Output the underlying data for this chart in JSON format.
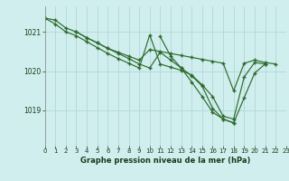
{
  "title": "Graphe pression niveau de la mer (hPa)",
  "bg_color": "#d0eeee",
  "grid_color": "#b0d8d8",
  "line_color": "#2d6a2d",
  "xlim": [
    0,
    23
  ],
  "ylim": [
    1018.1,
    1021.65
  ],
  "yticks": [
    1019,
    1020,
    1021
  ],
  "xticks": [
    0,
    1,
    2,
    3,
    4,
    5,
    6,
    7,
    8,
    9,
    10,
    11,
    12,
    13,
    14,
    15,
    16,
    17,
    18,
    19,
    20,
    21,
    22,
    23
  ],
  "series": [
    {
      "x": [
        0,
        1,
        2,
        3,
        4,
        5,
        6,
        7,
        8,
        9,
        10,
        11,
        12,
        13,
        14,
        15,
        16,
        17,
        18,
        19,
        20,
        21,
        22
      ],
      "y": [
        1021.35,
        1021.3,
        1021.1,
        1021.0,
        1020.85,
        1020.72,
        1020.58,
        1020.48,
        1020.38,
        1020.28,
        1020.55,
        1020.5,
        1020.45,
        1020.4,
        1020.35,
        1020.3,
        1020.25,
        1020.2,
        1019.5,
        1020.2,
        1020.28,
        1020.22,
        1020.18
      ]
    },
    {
      "x": [
        0,
        1,
        2,
        3,
        4,
        5,
        6,
        7,
        8,
        9,
        10,
        11,
        12,
        13,
        14,
        15,
        16,
        17,
        18,
        19,
        20,
        21
      ],
      "y": [
        1021.35,
        1021.2,
        1021.0,
        1020.9,
        1020.75,
        1020.6,
        1020.45,
        1020.32,
        1020.2,
        1020.08,
        1020.92,
        1020.18,
        1020.1,
        1020.02,
        1019.9,
        1019.65,
        1019.35,
        1018.85,
        1018.78,
        1019.85,
        1020.22,
        1020.18
      ]
    },
    {
      "x": [
        3,
        4,
        5,
        6,
        7,
        8,
        9,
        10,
        11,
        12,
        13,
        14,
        15,
        16,
        17,
        18,
        19,
        20,
        21
      ],
      "y": [
        1021.0,
        1020.85,
        1020.72,
        1020.58,
        1020.45,
        1020.32,
        1020.18,
        1020.08,
        1020.48,
        1020.28,
        1020.08,
        1019.88,
        1019.62,
        1019.05,
        1018.78,
        1018.68,
        1019.32,
        1019.95,
        1020.18
      ]
    },
    {
      "x": [
        11,
        12,
        13,
        14,
        15,
        16,
        17,
        18
      ],
      "y": [
        1020.88,
        1020.38,
        1020.08,
        1019.72,
        1019.35,
        1018.95,
        1018.78,
        1018.68
      ]
    }
  ]
}
